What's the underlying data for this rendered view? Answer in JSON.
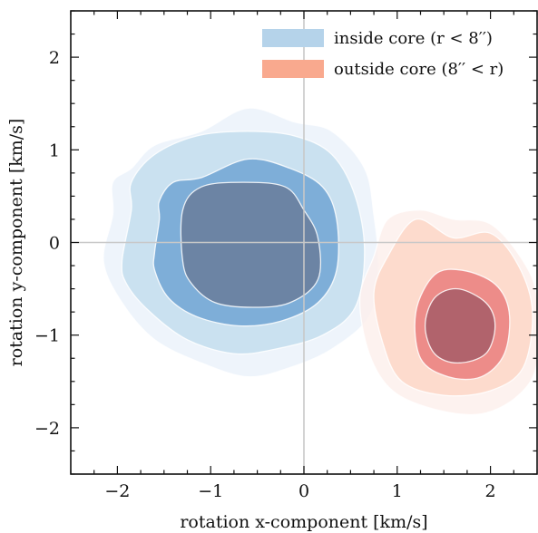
{
  "chart_data": {
    "type": "contour",
    "xlabel": "rotation x-component [km/s]",
    "ylabel": "rotation y-component [km/s]",
    "xlim": [
      -2.5,
      2.5
    ],
    "ylim": [
      -2.5,
      2.5
    ],
    "xticks": [
      -2,
      -1,
      0,
      1,
      2
    ],
    "yticks": [
      -2,
      -1,
      0,
      1,
      2
    ],
    "reference_lines": {
      "x": 0,
      "y": 0,
      "color": "#c8c8c8"
    },
    "legend": {
      "placement": "top-right"
    },
    "series": [
      {
        "name": "inside core (r < 8′′)",
        "color": "#b5d3ea",
        "center": [
          -0.6,
          -0.1
        ],
        "levels": [
          {
            "color": "#ecf3fb",
            "points": [
              [
                -2.15,
                -0.2
              ],
              [
                -2.05,
                0.3
              ],
              [
                -2.05,
                0.65
              ],
              [
                -1.85,
                0.8
              ],
              [
                -1.6,
                1.05
              ],
              [
                -1.1,
                1.2
              ],
              [
                -0.6,
                1.45
              ],
              [
                -0.1,
                1.3
              ],
              [
                0.3,
                1.2
              ],
              [
                0.65,
                0.8
              ],
              [
                0.75,
                0.3
              ],
              [
                0.8,
                -0.3
              ],
              [
                0.7,
                -0.8
              ],
              [
                0.3,
                -1.15
              ],
              [
                -0.15,
                -1.35
              ],
              [
                -0.6,
                -1.45
              ],
              [
                -1.1,
                -1.3
              ],
              [
                -1.6,
                -1.05
              ],
              [
                -1.95,
                -0.65
              ]
            ]
          },
          {
            "color": "#c5dfee",
            "points": [
              [
                -1.95,
                -0.2
              ],
              [
                -1.85,
                0.35
              ],
              [
                -1.85,
                0.65
              ],
              [
                -1.6,
                0.95
              ],
              [
                -1.15,
                1.15
              ],
              [
                -0.6,
                1.2
              ],
              [
                -0.1,
                1.15
              ],
              [
                0.3,
                0.95
              ],
              [
                0.55,
                0.5
              ],
              [
                0.65,
                -0.1
              ],
              [
                0.55,
                -0.7
              ],
              [
                0.2,
                -1.0
              ],
              [
                -0.3,
                -1.15
              ],
              [
                -0.75,
                -1.2
              ],
              [
                -1.25,
                -1.05
              ],
              [
                -1.65,
                -0.75
              ],
              [
                -1.9,
                -0.45
              ]
            ]
          },
          {
            "color": "#76a8d5",
            "points": [
              [
                -1.6,
                -0.1
              ],
              [
                -1.55,
                0.25
              ],
              [
                -1.55,
                0.45
              ],
              [
                -1.4,
                0.65
              ],
              [
                -1.1,
                0.7
              ],
              [
                -0.6,
                0.9
              ],
              [
                -0.15,
                0.8
              ],
              [
                0.2,
                0.6
              ],
              [
                0.35,
                0.25
              ],
              [
                0.35,
                -0.3
              ],
              [
                0.15,
                -0.65
              ],
              [
                -0.25,
                -0.85
              ],
              [
                -0.7,
                -0.9
              ],
              [
                -1.15,
                -0.8
              ],
              [
                -1.45,
                -0.6
              ],
              [
                -1.6,
                -0.3
              ]
            ]
          },
          {
            "color": "#6a7f9f",
            "points": [
              [
                -1.3,
                -0.2
              ],
              [
                -1.3,
                0.35
              ],
              [
                -1.1,
                0.6
              ],
              [
                -0.65,
                0.65
              ],
              [
                -0.2,
                0.6
              ],
              [
                0.0,
                0.35
              ],
              [
                0.15,
                0.05
              ],
              [
                0.15,
                -0.4
              ],
              [
                -0.15,
                -0.65
              ],
              [
                -0.55,
                -0.7
              ],
              [
                -0.95,
                -0.65
              ],
              [
                -1.2,
                -0.45
              ]
            ]
          }
        ]
      },
      {
        "name": "outside core (8′′ < r)",
        "color": "#f9a98e",
        "center": [
          1.65,
          -0.9
        ],
        "levels": [
          {
            "color": "#fdefec",
            "points": [
              [
                0.6,
                -0.6
              ],
              [
                0.75,
                -0.15
              ],
              [
                0.9,
                0.25
              ],
              [
                1.25,
                0.35
              ],
              [
                1.6,
                0.25
              ],
              [
                2.0,
                0.2
              ],
              [
                2.35,
                -0.2
              ],
              [
                2.5,
                -0.6
              ],
              [
                2.5,
                -1.3
              ],
              [
                2.3,
                -1.65
              ],
              [
                1.9,
                -1.85
              ],
              [
                1.4,
                -1.8
              ],
              [
                0.95,
                -1.6
              ],
              [
                0.7,
                -1.2
              ]
            ]
          },
          {
            "color": "#fcd6c6",
            "points": [
              [
                0.75,
                -0.55
              ],
              [
                0.9,
                -0.15
              ],
              [
                1.2,
                0.25
              ],
              [
                1.6,
                0.05
              ],
              [
                2.0,
                0.1
              ],
              [
                2.3,
                -0.25
              ],
              [
                2.45,
                -0.75
              ],
              [
                2.35,
                -1.35
              ],
              [
                2.0,
                -1.6
              ],
              [
                1.5,
                -1.65
              ],
              [
                1.05,
                -1.5
              ],
              [
                0.85,
                -1.1
              ]
            ]
          },
          {
            "color": "#e97a7a",
            "points": [
              [
                1.2,
                -0.75
              ],
              [
                1.4,
                -0.35
              ],
              [
                1.7,
                -0.3
              ],
              [
                2.05,
                -0.45
              ],
              [
                2.2,
                -0.75
              ],
              [
                2.15,
                -1.2
              ],
              [
                1.9,
                -1.45
              ],
              [
                1.55,
                -1.45
              ],
              [
                1.25,
                -1.25
              ]
            ]
          },
          {
            "color": "#a35a65",
            "points": [
              [
                1.3,
                -0.9
              ],
              [
                1.4,
                -0.6
              ],
              [
                1.65,
                -0.5
              ],
              [
                1.95,
                -0.65
              ],
              [
                2.05,
                -0.9
              ],
              [
                1.95,
                -1.2
              ],
              [
                1.65,
                -1.3
              ],
              [
                1.4,
                -1.2
              ]
            ]
          }
        ]
      }
    ]
  }
}
